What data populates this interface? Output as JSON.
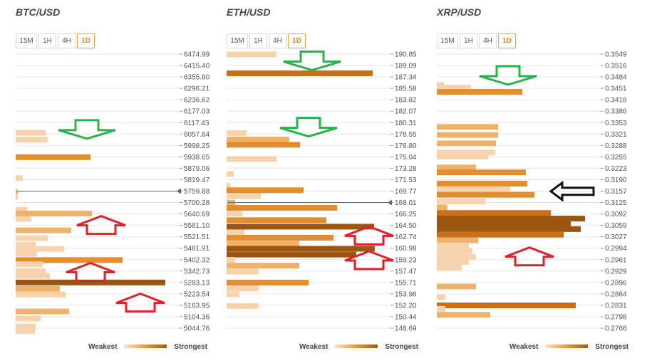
{
  "legend": {
    "weakest": "Weakest",
    "strongest": "Strongest"
  },
  "colors": {
    "grid": "#e6e6e6",
    "level1": "#f6d2ad",
    "level2": "#efb26c",
    "level3": "#e38d2d",
    "level4": "#c96f18",
    "level5": "#9c5610",
    "arrow_down": "#2bb24c",
    "arrow_up": "#e0202a",
    "arrow_left": "#111111",
    "current_price_line": "#4a6585"
  },
  "panels": [
    {
      "title": "BTC/USD",
      "timeframes": [
        "15M",
        "1H",
        "4H",
        "1D"
      ],
      "active_timeframe": "1D",
      "chart_data": {
        "type": "bar",
        "orientation": "horizontal",
        "description": "Technical confluence levels; bar length and color reflect strength",
        "price_levels": [
          "6474.99",
          "6415.40",
          "6355.80",
          "6296.21",
          "6236.62",
          "6177.03",
          "6117.43",
          "6057.84",
          "5998.25",
          "5938.65",
          "5879.06",
          "5819.47",
          "5759.88",
          "5700.28",
          "5640.69",
          "5581.10",
          "5521.51",
          "5461.91",
          "5402.32",
          "5342.73",
          "5283.13",
          "5223.54",
          "5163.95",
          "5104.36",
          "5044.76"
        ],
        "current_price": 5759.88,
        "strength_scale_max": 230,
        "bars": [
          {
            "price": 6065,
            "length": 42,
            "level": 1
          },
          {
            "price": 6028,
            "length": 45,
            "level": 1
          },
          {
            "price": 5937,
            "length": 105,
            "level": 3
          },
          {
            "price": 5828,
            "length": 10,
            "level": 1
          },
          {
            "price": 5755,
            "length": 3,
            "level": 2
          },
          {
            "price": 5730,
            "length": 3,
            "level": 1
          },
          {
            "price": 5663,
            "length": 16,
            "level": 1
          },
          {
            "price": 5643,
            "length": 107,
            "level": 2
          },
          {
            "price": 5615,
            "length": 22,
            "level": 1
          },
          {
            "price": 5555,
            "length": 78,
            "level": 2
          },
          {
            "price": 5515,
            "length": 45,
            "level": 1
          },
          {
            "price": 5480,
            "length": 28,
            "level": 1
          },
          {
            "price": 5458,
            "length": 68,
            "level": 1
          },
          {
            "price": 5433,
            "length": 30,
            "level": 1
          },
          {
            "price": 5400,
            "length": 150,
            "level": 3
          },
          {
            "price": 5378,
            "length": 38,
            "level": 1
          },
          {
            "price": 5342,
            "length": 42,
            "level": 1
          },
          {
            "price": 5318,
            "length": 48,
            "level": 1
          },
          {
            "price": 5283,
            "length": 210,
            "level": 5
          },
          {
            "price": 5250,
            "length": 62,
            "level": 2
          },
          {
            "price": 5220,
            "length": 70,
            "level": 1
          },
          {
            "price": 5132,
            "length": 75,
            "level": 2
          },
          {
            "price": 5095,
            "length": 35,
            "level": 1
          },
          {
            "price": 5053,
            "length": 28,
            "level": 1
          },
          {
            "price": 5030,
            "length": 27,
            "level": 1
          }
        ],
        "annotations": [
          {
            "type": "arrow_down",
            "price": 6078
          },
          {
            "type": "arrow_up",
            "price": 5585
          },
          {
            "type": "arrow_up",
            "price": 5340
          },
          {
            "type": "arrow_up",
            "price": 5180
          }
        ]
      }
    },
    {
      "title": "ETH/USD",
      "timeframes": [
        "15M",
        "1H",
        "4H",
        "1D"
      ],
      "active_timeframe": "1D",
      "chart_data": {
        "type": "bar",
        "orientation": "horizontal",
        "description": "Technical confluence levels; bar length and color reflect strength",
        "price_levels": [
          "190.85",
          "189.09",
          "187.34",
          "185.58",
          "183.82",
          "182.07",
          "180.31",
          "178.55",
          "176.80",
          "175.04",
          "173.28",
          "171.53",
          "169.77",
          "168.01",
          "166.25",
          "164.50",
          "162.74",
          "160.98",
          "159.23",
          "157.47",
          "155.71",
          "153.96",
          "152.20",
          "150.44",
          "148.69"
        ],
        "current_price": 168.01,
        "strength_scale_max": 230,
        "bars": [
          {
            "price": 190.8,
            "length": 70,
            "level": 1
          },
          {
            "price": 187.9,
            "length": 205,
            "level": 4
          },
          {
            "price": 178.7,
            "length": 28,
            "level": 1
          },
          {
            "price": 177.7,
            "length": 88,
            "level": 2
          },
          {
            "price": 176.9,
            "length": 103,
            "level": 3
          },
          {
            "price": 174.7,
            "length": 70,
            "level": 1
          },
          {
            "price": 172.4,
            "length": 10,
            "level": 1
          },
          {
            "price": 170.6,
            "length": 5,
            "level": 1
          },
          {
            "price": 169.9,
            "length": 108,
            "level": 3
          },
          {
            "price": 169.0,
            "length": 48,
            "level": 1
          },
          {
            "price": 168.0,
            "length": 12,
            "level": 2
          },
          {
            "price": 167.2,
            "length": 155,
            "level": 3
          },
          {
            "price": 166.3,
            "length": 22,
            "level": 1
          },
          {
            "price": 165.3,
            "length": 140,
            "level": 3
          },
          {
            "price": 164.3,
            "length": 207,
            "level": 5
          },
          {
            "price": 163.4,
            "length": 25,
            "level": 1
          },
          {
            "price": 162.6,
            "length": 150,
            "level": 3
          },
          {
            "price": 161.7,
            "length": 102,
            "level": 2
          },
          {
            "price": 160.9,
            "length": 208,
            "level": 5
          },
          {
            "price": 160.0,
            "length": 182,
            "level": 5
          },
          {
            "price": 159.2,
            "length": 12,
            "level": 1
          },
          {
            "price": 158.3,
            "length": 102,
            "level": 2
          },
          {
            "price": 157.4,
            "length": 45,
            "level": 1
          },
          {
            "price": 155.7,
            "length": 115,
            "level": 3
          },
          {
            "price": 154.8,
            "length": 45,
            "level": 1
          },
          {
            "price": 153.9,
            "length": 18,
            "level": 1
          },
          {
            "price": 152.1,
            "length": 45,
            "level": 1
          }
        ],
        "annotations": [
          {
            "type": "arrow_down",
            "price": 189.7
          },
          {
            "type": "arrow_down",
            "price": 179.5
          },
          {
            "type": "arrow_up",
            "price": 163.0
          },
          {
            "type": "arrow_up",
            "price": 159.2
          }
        ]
      }
    },
    {
      "title": "XRP/USD",
      "timeframes": [
        "15M",
        "1H",
        "4H",
        "1D"
      ],
      "active_timeframe": "1D",
      "chart_data": {
        "type": "bar",
        "orientation": "horizontal",
        "description": "Technical confluence levels; bar length and color reflect strength",
        "price_levels": [
          "0.3549",
          "0.3516",
          "0.3484",
          "0.3451",
          "0.3418",
          "0.3386",
          "0.3353",
          "0.3321",
          "0.3288",
          "0.3255",
          "0.3223",
          "0.3190",
          "0.3157",
          "0.3125",
          "0.3092",
          "0.3059",
          "0.3027",
          "0.2994",
          "0.2961",
          "0.2929",
          "0.2896",
          "0.2864",
          "0.2831",
          "0.2798",
          "0.2766"
        ],
        "strength_scale_max": 230,
        "bars": [
          {
            "price": 0.3461,
            "length": 10,
            "level": 1
          },
          {
            "price": 0.3453,
            "length": 48,
            "level": 1
          },
          {
            "price": 0.3441,
            "length": 120,
            "level": 3
          },
          {
            "price": 0.3341,
            "length": 86,
            "level": 2
          },
          {
            "price": 0.3318,
            "length": 86,
            "level": 2
          },
          {
            "price": 0.3294,
            "length": 83,
            "level": 2
          },
          {
            "price": 0.3268,
            "length": 82,
            "level": 1
          },
          {
            "price": 0.3256,
            "length": 72,
            "level": 1
          },
          {
            "price": 0.3225,
            "length": 55,
            "level": 2
          },
          {
            "price": 0.3211,
            "length": 125,
            "level": 3
          },
          {
            "price": 0.3179,
            "length": 127,
            "level": 3
          },
          {
            "price": 0.3163,
            "length": 103,
            "level": 1
          },
          {
            "price": 0.3147,
            "length": 137,
            "level": 3
          },
          {
            "price": 0.3128,
            "length": 68,
            "level": 1
          },
          {
            "price": 0.3111,
            "length": 15,
            "level": 2
          },
          {
            "price": 0.3095,
            "length": 160,
            "level": 4
          },
          {
            "price": 0.3079,
            "length": 208,
            "level": 5
          },
          {
            "price": 0.3064,
            "length": 188,
            "level": 5
          },
          {
            "price": 0.3049,
            "length": 202,
            "level": 5
          },
          {
            "price": 0.3033,
            "length": 178,
            "level": 4
          },
          {
            "price": 0.3017,
            "length": 58,
            "level": 2
          },
          {
            "price": 0.3002,
            "length": 45,
            "level": 1
          },
          {
            "price": 0.2986,
            "length": 50,
            "level": 1
          },
          {
            "price": 0.297,
            "length": 55,
            "level": 1
          },
          {
            "price": 0.2955,
            "length": 45,
            "level": 1
          },
          {
            "price": 0.2939,
            "length": 35,
            "level": 1
          },
          {
            "price": 0.2885,
            "length": 55,
            "level": 2
          },
          {
            "price": 0.2854,
            "length": 12,
            "level": 1
          },
          {
            "price": 0.2831,
            "length": 195,
            "level": 4
          },
          {
            "price": 0.2821,
            "length": 12,
            "level": 1
          },
          {
            "price": 0.2804,
            "length": 75,
            "level": 2
          }
        ],
        "annotations": [
          {
            "type": "arrow_down",
            "price": 0.3486
          },
          {
            "type": "arrow_up",
            "price": 0.2972
          },
          {
            "type": "arrow_left",
            "price": 0.3157
          }
        ]
      }
    }
  ]
}
